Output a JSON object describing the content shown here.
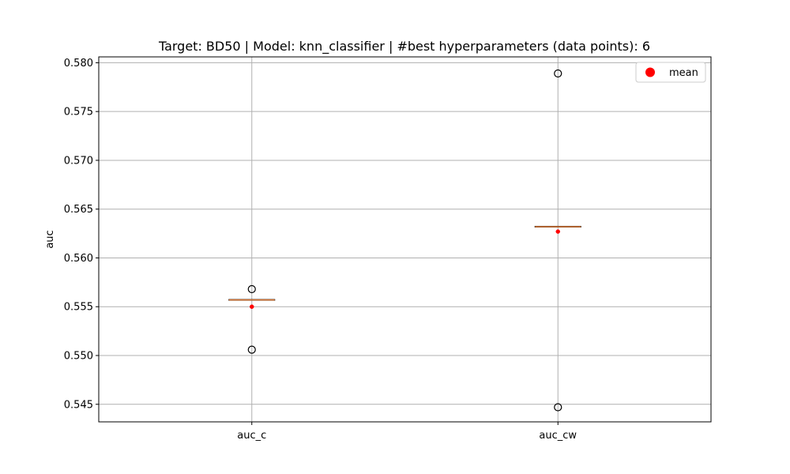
{
  "chart_data": {
    "type": "box",
    "title": "Target: BD50 | Model: knn_classifier | #best hyperparameters (data points): 6",
    "xlabel": "",
    "ylabel": "auc",
    "categories": [
      "auc_c",
      "auc_cw"
    ],
    "ylim": [
      0.5432,
      0.5806
    ],
    "yticks": [
      "0.545",
      "0.550",
      "0.555",
      "0.560",
      "0.565",
      "0.570",
      "0.575",
      "0.580"
    ],
    "grid": true,
    "legend": {
      "placement": "top-right",
      "entries": [
        {
          "label": "mean",
          "color": "#ff0000"
        }
      ]
    },
    "boxes": [
      {
        "category": "auc_c",
        "q1": 0.5557,
        "median": 0.5557,
        "q3": 0.5557,
        "whisker_low": 0.5557,
        "whisker_high": 0.5557,
        "mean": 0.555,
        "outliers": [
          0.5568,
          0.5506
        ]
      },
      {
        "category": "auc_cw",
        "q1": 0.5632,
        "median": 0.5632,
        "q3": 0.5632,
        "whisker_low": 0.5632,
        "whisker_high": 0.5632,
        "mean": 0.5627,
        "outliers": [
          0.5789,
          0.5447
        ]
      }
    ],
    "colors": {
      "median": "#e07b39",
      "mean": "#ff0000",
      "grid": "#b0b0b0",
      "outlier": "#000000"
    }
  }
}
